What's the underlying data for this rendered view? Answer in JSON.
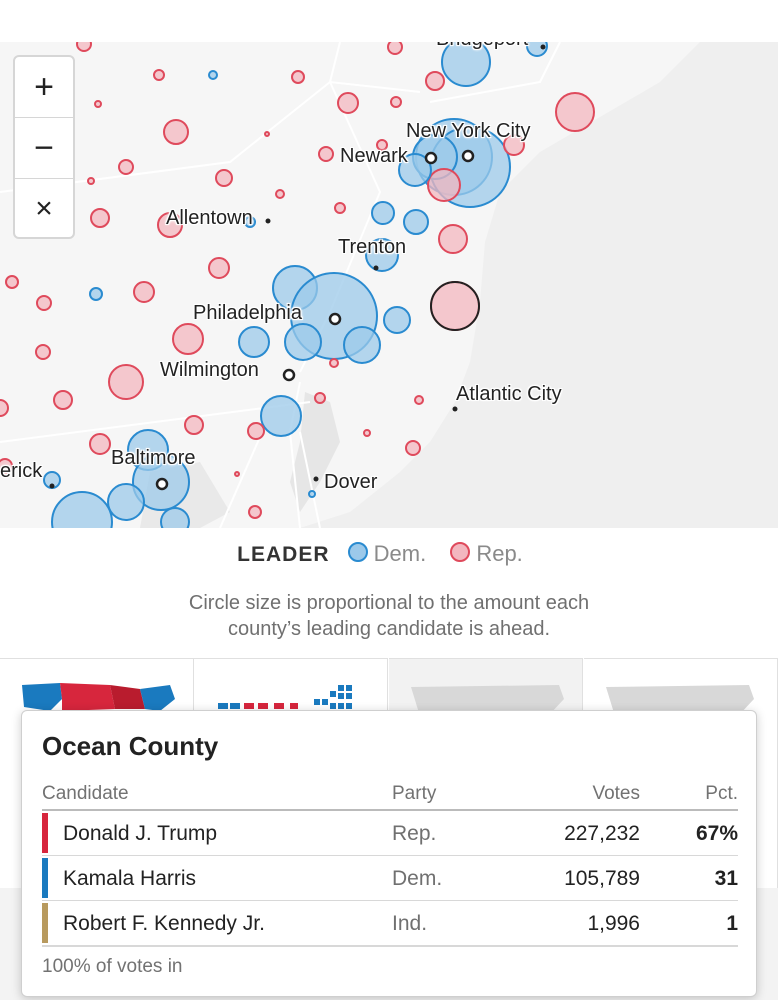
{
  "map": {
    "cities": [
      {
        "name": "Bridgeport"
      },
      {
        "name": "New York City"
      },
      {
        "name": "Newark"
      },
      {
        "name": "Allentown"
      },
      {
        "name": "Trenton"
      },
      {
        "name": "Philadelphia"
      },
      {
        "name": "Wilmington"
      },
      {
        "name": "Atlantic City"
      },
      {
        "name": "Baltimore"
      },
      {
        "name": "Dover"
      },
      {
        "name": "erick"
      }
    ],
    "zoom_controls": {
      "zoom_in": "+",
      "zoom_out": "−",
      "reset": "×"
    }
  },
  "legend": {
    "label": "LEADER",
    "items": [
      {
        "label": "Dem.",
        "color": "#2a8bd0"
      },
      {
        "label": "Rep.",
        "color": "#e0394b"
      }
    ]
  },
  "note": {
    "line1": "Circle size is proportional to the amount each",
    "line2": "county’s leading candidate is ahead."
  },
  "tooltip": {
    "county": "Ocean County",
    "headers": {
      "candidate": "Candidate",
      "party": "Party",
      "votes": "Votes",
      "pct": "Pct."
    },
    "rows": [
      {
        "name": "Donald J. Trump",
        "party": "Rep.",
        "votes": "227,232",
        "pct": "67%",
        "color": "#d7263d"
      },
      {
        "name": "Kamala Harris",
        "party": "Dem.",
        "votes": "105,789",
        "pct": "31",
        "color": "#1a7abf"
      },
      {
        "name": "Robert F. Kennedy Jr.",
        "party": "Ind.",
        "votes": "1,996",
        "pct": "1",
        "color": "#b89a5e"
      }
    ],
    "footer": "100% of votes in"
  },
  "colors": {
    "dem_fill": "#9cc9ea",
    "dem_stroke": "#2a8bd0",
    "rep_fill": "#f3b7bf",
    "rep_stroke": "#df4a5c"
  }
}
